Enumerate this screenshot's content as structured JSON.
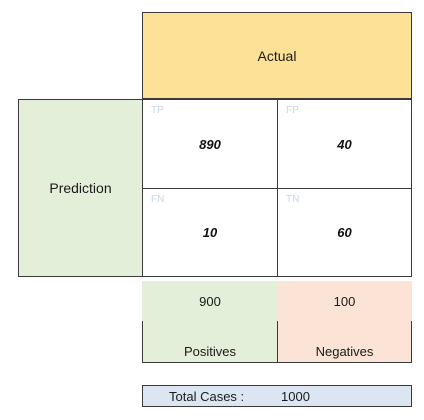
{
  "header": {
    "actual": "Actual"
  },
  "side": {
    "prediction": "Prediction"
  },
  "cells": {
    "tp": {
      "label": "TP",
      "value": "890"
    },
    "fp": {
      "label": "FP",
      "value": "40"
    },
    "fn": {
      "label": "FN",
      "value": "10"
    },
    "tn": {
      "label": "TN",
      "value": "60"
    }
  },
  "totals": {
    "positives_count": "900",
    "negatives_count": "100",
    "positives_label": "Positives",
    "negatives_label": "Negatives"
  },
  "total_cases": {
    "label": "Total Cases :",
    "value": "1000"
  },
  "colors": {
    "actual_bg": "#fde196",
    "prediction_bg": "#e3efd9",
    "positives_bg": "#e3efd9",
    "negatives_bg": "#fbe4d6",
    "total_bg": "#dce6f2"
  }
}
